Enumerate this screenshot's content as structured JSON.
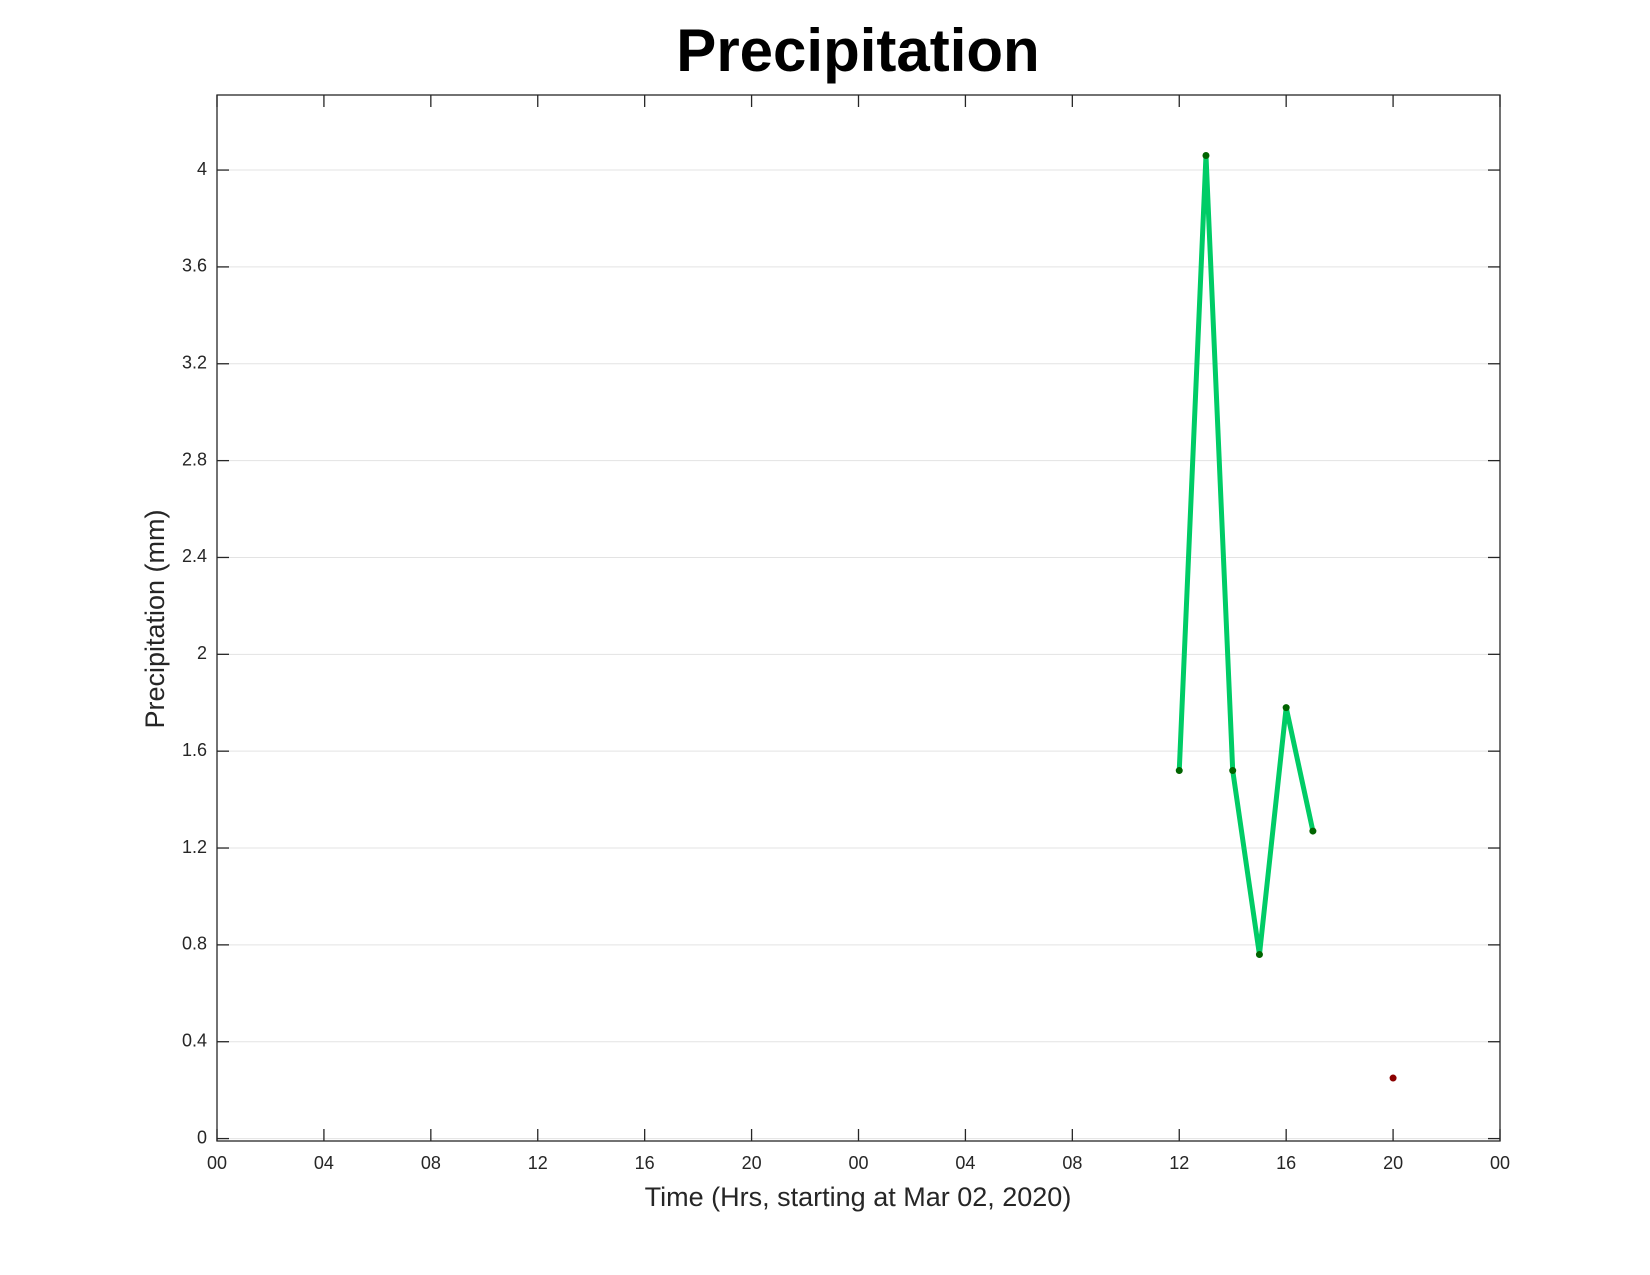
{
  "chart_data": {
    "type": "line",
    "title": "Precipitation",
    "xlabel": "Time (Hrs, starting at Mar 02, 2020)",
    "ylabel": "Precipitation (mm)",
    "x": [
      36,
      37,
      38,
      39,
      40,
      41,
      42,
      43,
      44
    ],
    "series": [
      {
        "color": "#00cc66",
        "marker_color": "#006400",
        "line": true,
        "values": [
          1.52,
          4.06,
          1.52,
          0.76,
          1.78,
          1.27,
          null,
          null,
          null
        ]
      },
      {
        "color": "#8b0000",
        "marker_color": "#8b0000",
        "line": false,
        "values": [
          null,
          null,
          null,
          null,
          null,
          null,
          null,
          null,
          0.25
        ]
      }
    ],
    "xlim": [
      0,
      48
    ],
    "xticks": [
      {
        "value": 0,
        "label": "00"
      },
      {
        "value": 4,
        "label": "04"
      },
      {
        "value": 8,
        "label": "08"
      },
      {
        "value": 12,
        "label": "12"
      },
      {
        "value": 16,
        "label": "16"
      },
      {
        "value": 20,
        "label": "20"
      },
      {
        "value": 24,
        "label": "00"
      },
      {
        "value": 28,
        "label": "04"
      },
      {
        "value": 32,
        "label": "08"
      },
      {
        "value": 36,
        "label": "12"
      },
      {
        "value": 40,
        "label": "16"
      },
      {
        "value": 44,
        "label": "20"
      },
      {
        "value": 48,
        "label": "00"
      }
    ],
    "ylim": [
      -0.01,
      4.31
    ],
    "yticks": [
      0,
      0.4,
      0.8,
      1.2,
      1.6,
      2,
      2.4,
      2.8,
      3.2,
      3.6,
      4
    ],
    "grid": true
  }
}
